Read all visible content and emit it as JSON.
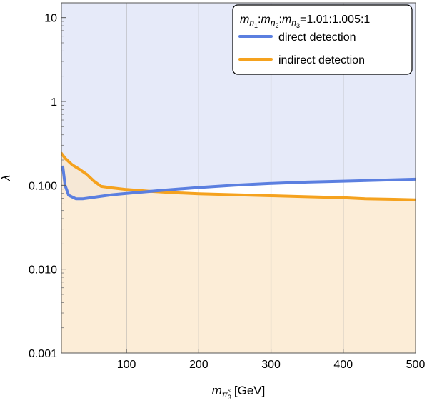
{
  "chart_data": {
    "type": "area",
    "title": "",
    "xlabel": {
      "symbol": "m",
      "subscript": "π",
      "sub_sub": "3",
      "sub_sup": "s",
      "unit": "[GeV]"
    },
    "ylabel": "λ",
    "xlim": [
      10,
      500
    ],
    "ylim": [
      0.001,
      15
    ],
    "yscale": "log",
    "xticks": [
      100,
      200,
      300,
      400,
      500
    ],
    "xtick_labels": [
      "100",
      "200",
      "300",
      "400",
      "500"
    ],
    "yticks": [
      0.001,
      0.01,
      0.1,
      1,
      10
    ],
    "ytick_labels": [
      "0.001",
      "0.010",
      "0.100",
      "1",
      "10"
    ],
    "grid": "vertical at x ticks",
    "legend": {
      "placement": "top-right",
      "title_parts": [
        {
          "text": "m",
          "italic": true
        },
        {
          "text": "n",
          "italic": true,
          "sub": true
        },
        {
          "text": "1",
          "sub2": true
        },
        {
          "text": ":",
          "italic": false
        },
        {
          "text": "m",
          "italic": true
        },
        {
          "text": "n",
          "italic": true,
          "sub": true
        },
        {
          "text": "2",
          "sub2": true
        },
        {
          "text": ":",
          "italic": false
        },
        {
          "text": "m",
          "italic": true
        },
        {
          "text": "n",
          "italic": true,
          "sub": true
        },
        {
          "text": "3",
          "sub2": true
        },
        {
          "text": "=1.01:1.005:1",
          "italic": false
        }
      ]
    },
    "series": [
      {
        "name": "direct detection",
        "color": "#5b7fe0",
        "fill": "#dde3f7",
        "fill_region": "above",
        "x": [
          12,
          15,
          20,
          30,
          40,
          60,
          80,
          100,
          150,
          200,
          250,
          300,
          350,
          400,
          450,
          500
        ],
        "y": [
          0.165,
          0.1,
          0.076,
          0.069,
          0.069,
          0.073,
          0.077,
          0.08,
          0.087,
          0.094,
          0.1,
          0.105,
          0.109,
          0.112,
          0.115,
          0.118
        ]
      },
      {
        "name": "indirect detection",
        "color": "#f5a21e",
        "fill": "#fbe7c9",
        "fill_region": "below",
        "x": [
          10,
          15,
          25,
          35,
          45,
          55,
          65,
          80,
          100,
          130,
          160,
          200,
          250,
          300,
          350,
          400,
          430,
          470,
          500
        ],
        "y": [
          0.24,
          0.21,
          0.175,
          0.155,
          0.135,
          0.112,
          0.097,
          0.093,
          0.089,
          0.085,
          0.082,
          0.079,
          0.077,
          0.075,
          0.073,
          0.071,
          0.069,
          0.068,
          0.067
        ]
      }
    ]
  }
}
